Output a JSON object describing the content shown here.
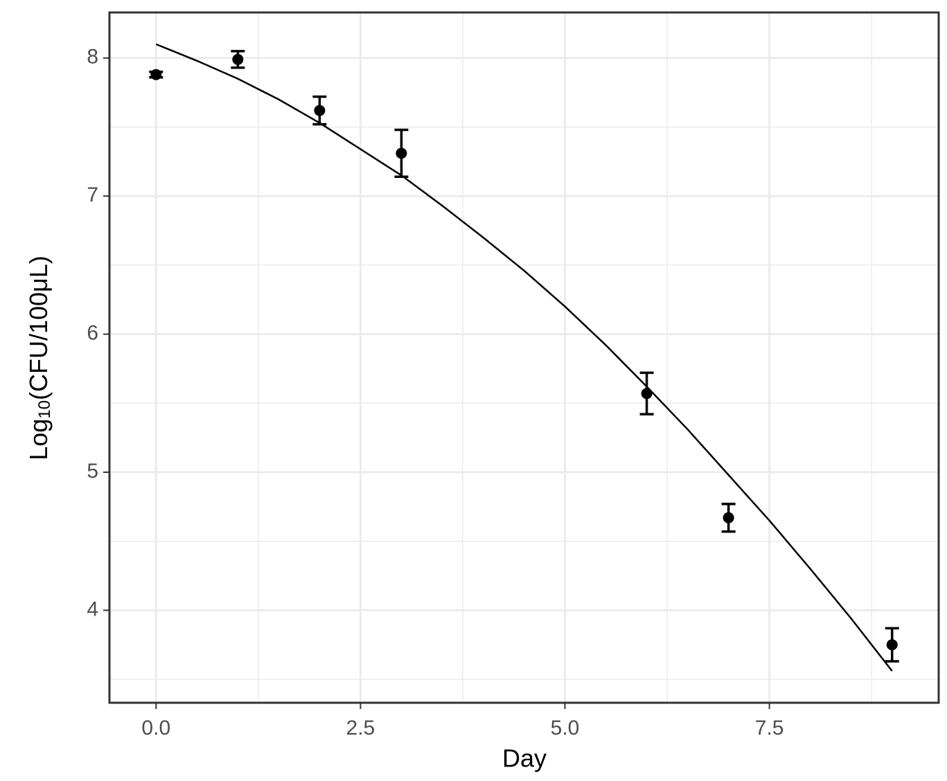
{
  "chart_data": {
    "type": "scatter",
    "x_label": "Day",
    "y_label": "Log",
    "y_label_sub": "10",
    "y_label_rest": "(CFU/100μL)",
    "xlim": [
      -0.57,
      9.57
    ],
    "ylim": [
      3.33,
      8.33
    ],
    "xticks": [
      {
        "value": 0,
        "label": "0.0"
      },
      2.5,
      {
        "value": 5,
        "label": "5.0"
      },
      7.5
    ],
    "yticks": [
      4,
      5,
      6,
      7,
      8
    ],
    "minor_xticks": [
      1.25,
      3.75,
      6.25,
      8.75
    ],
    "minor_yticks": [
      3.5,
      4.5,
      5.5,
      6.5,
      7.5
    ],
    "grid": true,
    "points": {
      "color": "#000000",
      "x": [
        0,
        1,
        2,
        3,
        6,
        7,
        9
      ],
      "values": [
        7.88,
        7.99,
        7.62,
        7.31,
        5.57,
        4.67,
        3.75
      ],
      "errors": [
        0.02,
        0.06,
        0.1,
        0.17,
        0.15,
        0.1,
        0.12
      ]
    },
    "fit": {
      "color": "#000000",
      "x": [
        0,
        0.5,
        1,
        1.5,
        2,
        2.5,
        3,
        3.5,
        4,
        4.5,
        5,
        5.5,
        6,
        6.5,
        7,
        7.5,
        8,
        8.5,
        9
      ],
      "values": [
        8.1,
        7.98,
        7.85,
        7.7,
        7.53,
        7.34,
        7.15,
        6.93,
        6.7,
        6.46,
        6.2,
        5.92,
        5.62,
        5.31,
        4.98,
        4.65,
        4.3,
        3.94,
        3.56
      ]
    }
  }
}
